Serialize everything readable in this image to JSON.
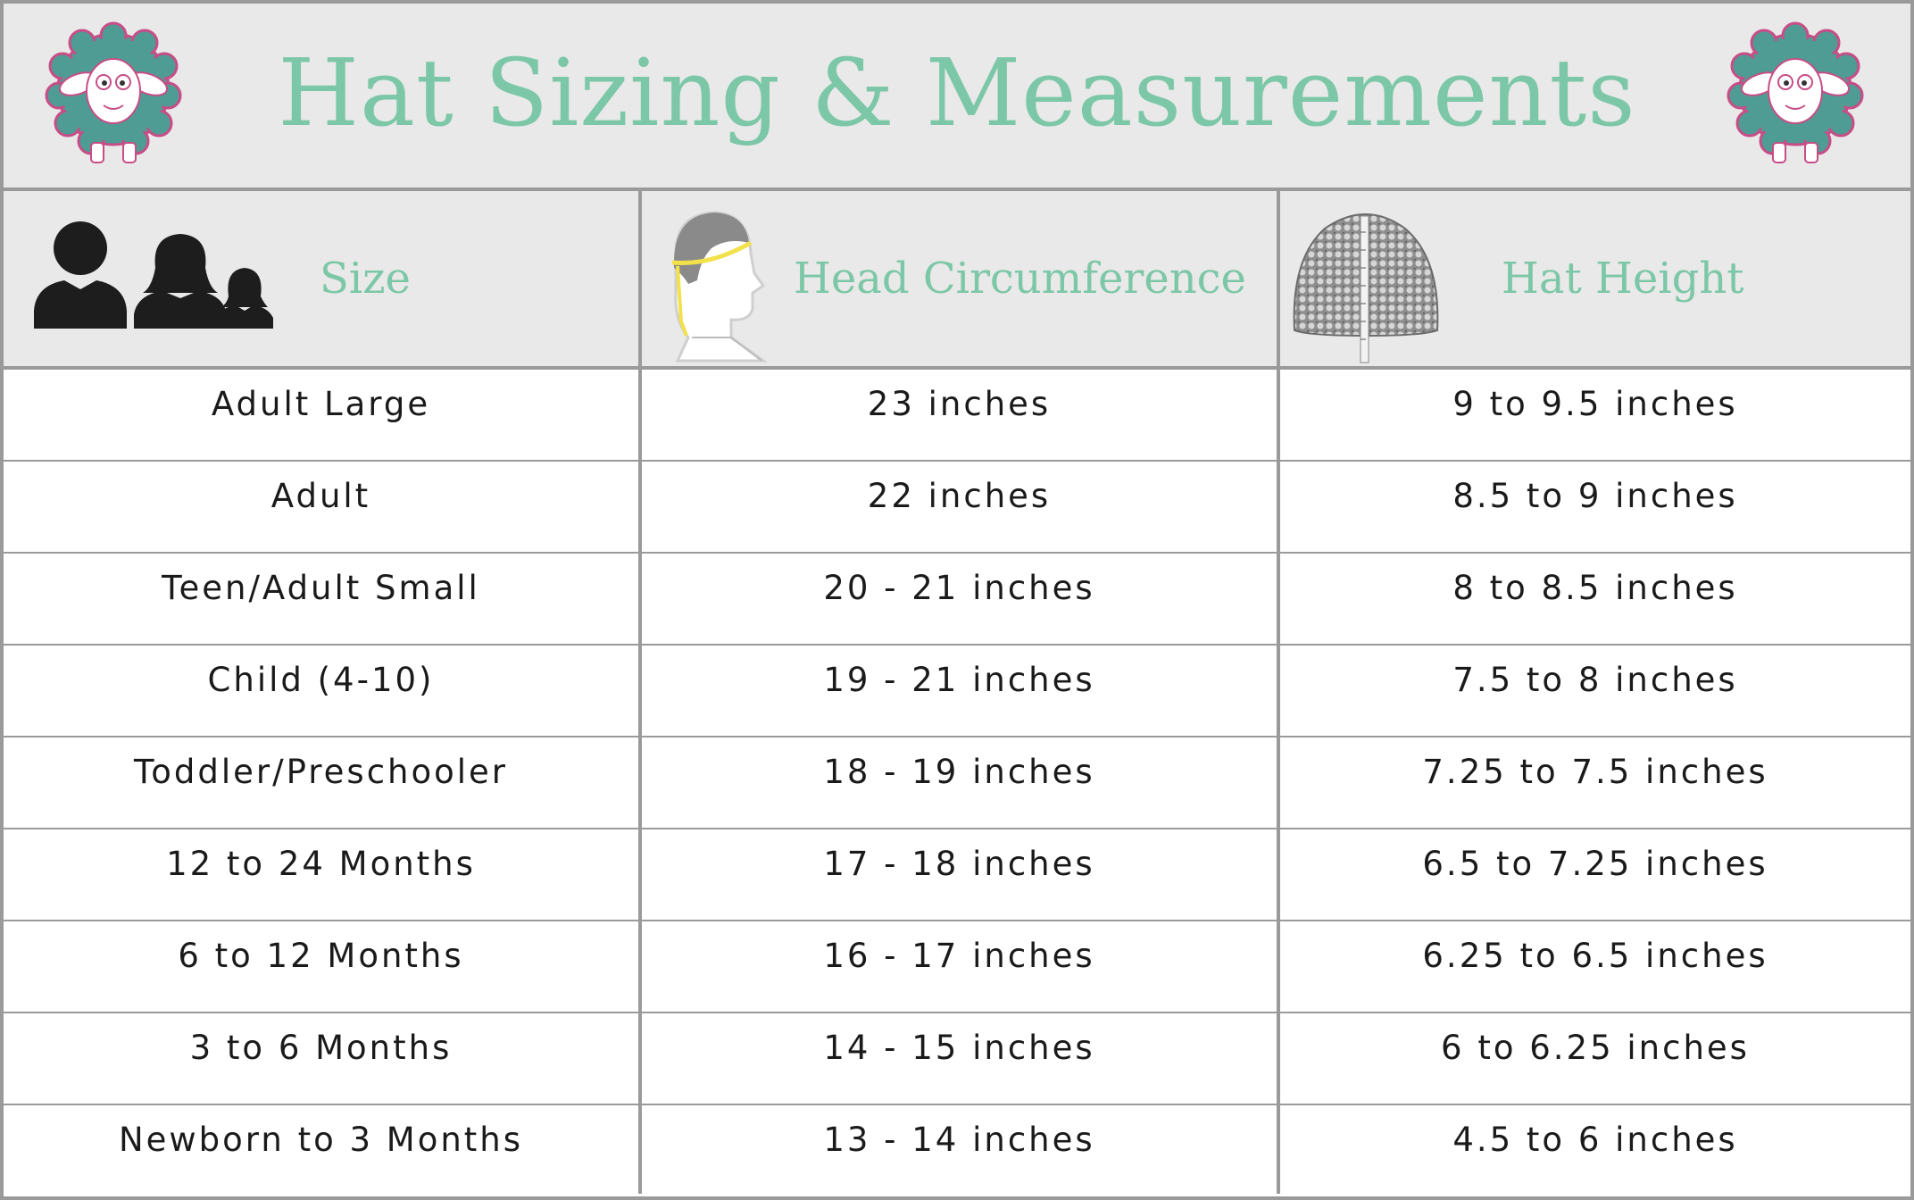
{
  "title": "Hat Sizing & Measurements",
  "colors": {
    "accent": "#7cc7a7",
    "header_bg": "#e9e9e9",
    "rule": "#9a9a9a",
    "sheep_wool": "#4e9c93",
    "sheep_trim": "#c84d86"
  },
  "headers": {
    "size": "Size",
    "head_circumference": "Head Circumference",
    "hat_height": "Hat Height"
  },
  "icons": {
    "left_logo": "sheep-logo-icon",
    "right_logo": "sheep-logo-icon",
    "size": "people-silhouettes-icon",
    "head_circumference": "head-measuring-tape-icon",
    "hat_height": "crochet-hat-icon"
  },
  "rows": [
    {
      "size": "Adult Large",
      "head": "23 inches",
      "height": "9 to 9.5 inches"
    },
    {
      "size": "Adult",
      "head": "22 inches",
      "height": "8.5 to 9 inches"
    },
    {
      "size": "Teen/Adult Small",
      "head": "20 - 21 inches",
      "height": "8 to 8.5 inches"
    },
    {
      "size": "Child (4-10)",
      "head": "19 - 21 inches",
      "height": "7.5 to 8 inches"
    },
    {
      "size": "Toddler/Preschooler",
      "head": "18 - 19 inches",
      "height": "7.25 to 7.5 inches"
    },
    {
      "size": "12 to 24 Months",
      "head": "17 - 18 inches",
      "height": "6.5 to 7.25 inches"
    },
    {
      "size": "6 to 12 Months",
      "head": "16 - 17 inches",
      "height": "6.25 to 6.5 inches"
    },
    {
      "size": "3 to 6 Months",
      "head": "14 - 15 inches",
      "height": "6 to 6.25 inches"
    },
    {
      "size": "Newborn to 3 Months",
      "head": "13 - 14 inches",
      "height": "4.5 to 6 inches"
    }
  ]
}
